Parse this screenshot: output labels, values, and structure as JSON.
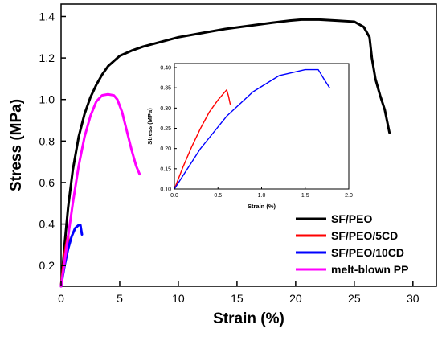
{
  "chart_data": [
    {
      "type": "line",
      "xlabel": "Strain (%)",
      "ylabel": "Stress (MPa)",
      "xlim": [
        0,
        32
      ],
      "ylim": [
        0.1,
        1.46
      ],
      "xticks": [
        "0",
        "5",
        "10",
        "15",
        "20",
        "25",
        "30"
      ],
      "yticks": [
        "0.2",
        "0.4",
        "0.6",
        "0.8",
        "1.0",
        "1.2",
        "1.4"
      ],
      "legend_position": "bottom-right",
      "series": [
        {
          "name": "SF/PEO",
          "color": "#000000",
          "x": [
            0,
            0.3,
            0.6,
            1,
            1.5,
            2,
            2.5,
            3,
            3.5,
            4,
            5,
            6,
            7,
            8,
            10,
            12,
            14,
            16,
            18,
            19.5,
            20.5,
            22,
            23.5,
            25,
            25.8,
            26.3,
            26.5,
            26.8,
            27.2,
            27.6,
            28
          ],
          "y": [
            0.1,
            0.3,
            0.48,
            0.66,
            0.82,
            0.93,
            1.01,
            1.07,
            1.12,
            1.16,
            1.21,
            1.235,
            1.255,
            1.27,
            1.3,
            1.32,
            1.34,
            1.355,
            1.37,
            1.38,
            1.385,
            1.385,
            1.38,
            1.375,
            1.35,
            1.3,
            1.2,
            1.1,
            1.02,
            0.95,
            0.84
          ]
        },
        {
          "name": "SF/PEO/5CD",
          "color": "#ff0000",
          "x": [
            0,
            0.1,
            0.2,
            0.3,
            0.4,
            0.5,
            0.6,
            0.62,
            0.64
          ],
          "y": [
            0.1,
            0.155,
            0.205,
            0.25,
            0.29,
            0.32,
            0.345,
            0.33,
            0.31
          ]
        },
        {
          "name": "SF/PEO/10CD",
          "color": "#0000ff",
          "x": [
            0,
            0.3,
            0.6,
            0.9,
            1.2,
            1.5,
            1.65,
            1.72,
            1.75,
            1.78
          ],
          "y": [
            0.1,
            0.2,
            0.28,
            0.34,
            0.38,
            0.395,
            0.395,
            0.37,
            0.36,
            0.35
          ]
        },
        {
          "name": "melt-blown PP",
          "color": "#ff00ff",
          "x": [
            0,
            0.5,
            1,
            1.5,
            2,
            2.5,
            3,
            3.5,
            4,
            4.5,
            4.8,
            5.2,
            5.6,
            6,
            6.4,
            6.7
          ],
          "y": [
            0.1,
            0.3,
            0.5,
            0.68,
            0.82,
            0.92,
            0.99,
            1.02,
            1.025,
            1.02,
            1.0,
            0.94,
            0.85,
            0.76,
            0.68,
            0.64
          ]
        }
      ]
    },
    {
      "type": "line",
      "xlabel": "Strain (%)",
      "ylabel": "Stress (MPa)",
      "xlim": [
        0,
        2.0
      ],
      "ylim": [
        0.1,
        0.41
      ],
      "xticks": [
        "0.0",
        "0.5",
        "1.0",
        "1.5",
        "2.0"
      ],
      "yticks": [
        "0.10",
        "0.15",
        "0.20",
        "0.25",
        "0.30",
        "0.35",
        "0.40"
      ],
      "series": [
        {
          "color": "#ff0000",
          "x": [
            0,
            0.1,
            0.2,
            0.3,
            0.4,
            0.5,
            0.6,
            0.62,
            0.64
          ],
          "y": [
            0.1,
            0.155,
            0.205,
            0.25,
            0.29,
            0.32,
            0.345,
            0.33,
            0.31
          ]
        },
        {
          "color": "#0000ff",
          "x": [
            0,
            0.3,
            0.6,
            0.9,
            1.2,
            1.5,
            1.65,
            1.72,
            1.75,
            1.78
          ],
          "y": [
            0.1,
            0.2,
            0.28,
            0.34,
            0.38,
            0.395,
            0.395,
            0.37,
            0.36,
            0.35
          ]
        }
      ]
    }
  ]
}
